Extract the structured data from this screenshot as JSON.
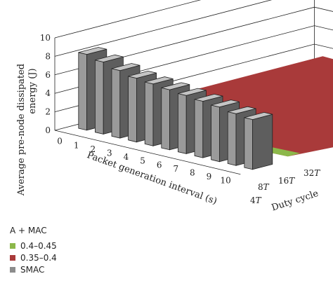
{
  "chart_data": {
    "type": "bar",
    "title": "",
    "ylabel_line1": "Average pre-node dissipated",
    "ylabel_line2": "energy (J)",
    "xlabel": "Packet generation interval (s)",
    "zlabel": "Duty cycle",
    "ylim": [
      0,
      10
    ],
    "yticks": [
      "0",
      "2",
      "4",
      "6",
      "8",
      "10"
    ],
    "x_categories": [
      "0",
      "1",
      "2",
      "3",
      "4",
      "5",
      "6",
      "7",
      "8",
      "9",
      "10"
    ],
    "duty_cycle_ticks": [
      {
        "base": "4",
        "italic": "T"
      },
      {
        "base": "8",
        "italic": "T"
      },
      {
        "base": "16",
        "italic": "T"
      },
      {
        "base": "32",
        "italic": "T"
      }
    ],
    "series": [
      {
        "name": "SMAC",
        "color": "#8c8c8c",
        "values": [
          8.2,
          7.8,
          7.3,
          6.9,
          6.7,
          6.5,
          6.3,
          6.1,
          5.9,
          5.6,
          5.4
        ]
      },
      {
        "name": "0.35–0.4",
        "color": "#a93a3a"
      },
      {
        "name": "0.4–0.45",
        "color": "#8cb84a"
      }
    ],
    "legend": {
      "title": "A + MAC",
      "items": [
        {
          "label": "0.4–0.45",
          "color": "#8cb84a"
        },
        {
          "label": "0.35–0.4",
          "color": "#a93a3a"
        },
        {
          "label": "SMAC",
          "color": "#8c8c8c"
        }
      ]
    },
    "grid": true
  }
}
